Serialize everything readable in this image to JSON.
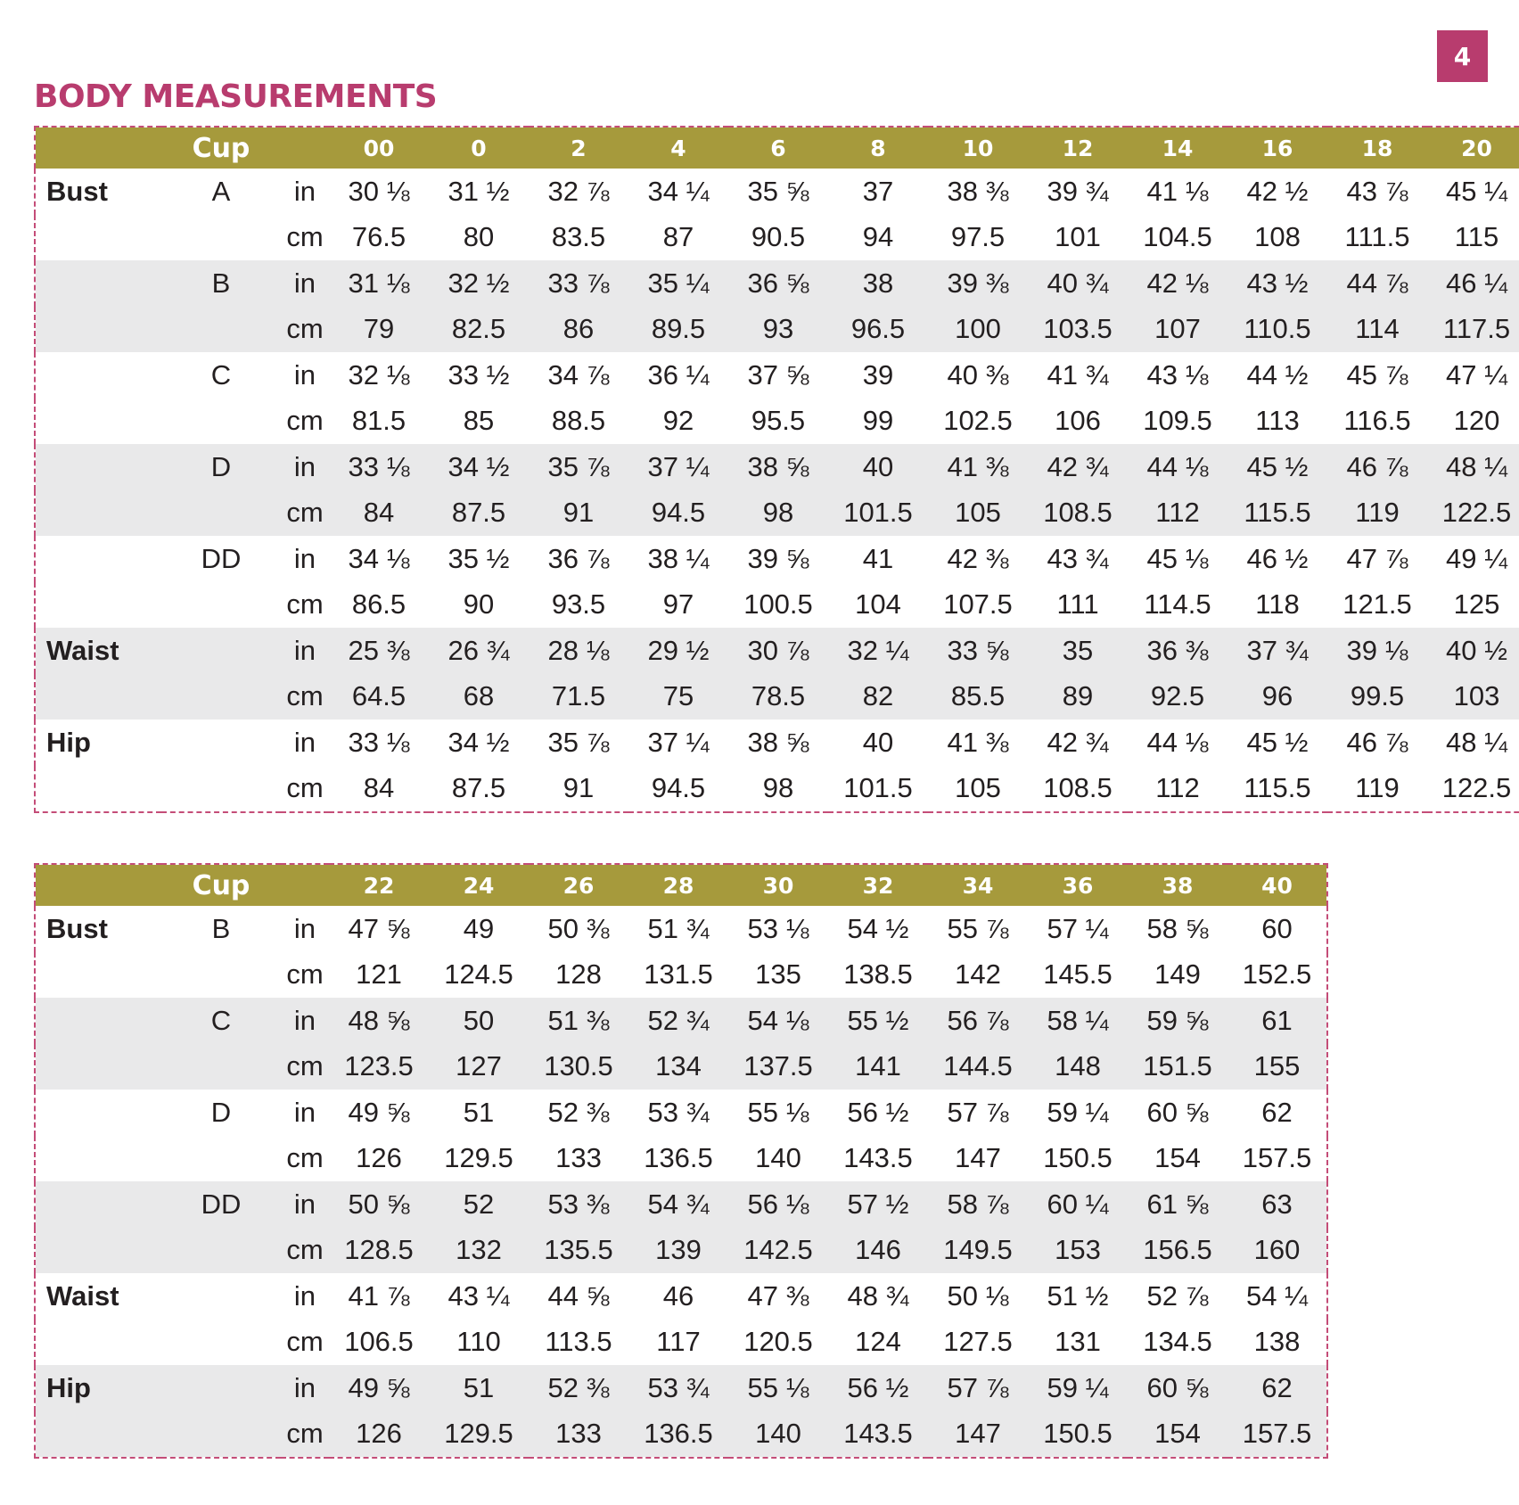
{
  "page_number": "4",
  "title": "BODY MEASUREMENTS",
  "colors": {
    "accent": "#b83c6e",
    "header_band": "#a69a3c",
    "row_shade": "#e9e9ea",
    "border_dash": "#c44d78"
  },
  "table1": {
    "cup_header": "Cup",
    "sizes": [
      "00",
      "0",
      "2",
      "4",
      "6",
      "8",
      "10",
      "12",
      "14",
      "16",
      "18",
      "20"
    ],
    "rows": [
      {
        "measure": "Bust",
        "cup": "A",
        "unit": "in",
        "values": [
          "30 ⅛",
          "31 ½",
          "32 ⅞",
          "34 ¼",
          "35 ⅝",
          "37",
          "38 ⅜",
          "39 ¾",
          "41 ⅛",
          "42 ½",
          "43 ⅞",
          "45 ¼"
        ]
      },
      {
        "measure": "",
        "cup": "",
        "unit": "cm",
        "values": [
          "76.5",
          "80",
          "83.5",
          "87",
          "90.5",
          "94",
          "97.5",
          "101",
          "104.5",
          "108",
          "111.5",
          "115"
        ]
      },
      {
        "measure": "",
        "cup": "B",
        "unit": "in",
        "values": [
          "31 ⅛",
          "32 ½",
          "33 ⅞",
          "35 ¼",
          "36 ⅝",
          "38",
          "39 ⅜",
          "40 ¾",
          "42 ⅛",
          "43 ½",
          "44 ⅞",
          "46 ¼"
        ]
      },
      {
        "measure": "",
        "cup": "",
        "unit": "cm",
        "values": [
          "79",
          "82.5",
          "86",
          "89.5",
          "93",
          "96.5",
          "100",
          "103.5",
          "107",
          "110.5",
          "114",
          "117.5"
        ]
      },
      {
        "measure": "",
        "cup": "C",
        "unit": "in",
        "values": [
          "32 ⅛",
          "33 ½",
          "34 ⅞",
          "36 ¼",
          "37 ⅝",
          "39",
          "40 ⅜",
          "41 ¾",
          "43 ⅛",
          "44 ½",
          "45 ⅞",
          "47 ¼"
        ]
      },
      {
        "measure": "",
        "cup": "",
        "unit": "cm",
        "values": [
          "81.5",
          "85",
          "88.5",
          "92",
          "95.5",
          "99",
          "102.5",
          "106",
          "109.5",
          "113",
          "116.5",
          "120"
        ]
      },
      {
        "measure": "",
        "cup": "D",
        "unit": "in",
        "values": [
          "33 ⅛",
          "34 ½",
          "35 ⅞",
          "37 ¼",
          "38 ⅝",
          "40",
          "41 ⅜",
          "42 ¾",
          "44 ⅛",
          "45 ½",
          "46 ⅞",
          "48 ¼"
        ]
      },
      {
        "measure": "",
        "cup": "",
        "unit": "cm",
        "values": [
          "84",
          "87.5",
          "91",
          "94.5",
          "98",
          "101.5",
          "105",
          "108.5",
          "112",
          "115.5",
          "119",
          "122.5"
        ]
      },
      {
        "measure": "",
        "cup": "DD",
        "unit": "in",
        "values": [
          "34 ⅛",
          "35 ½",
          "36 ⅞",
          "38 ¼",
          "39 ⅝",
          "41",
          "42 ⅜",
          "43 ¾",
          "45 ⅛",
          "46 ½",
          "47 ⅞",
          "49 ¼"
        ]
      },
      {
        "measure": "",
        "cup": "",
        "unit": "cm",
        "values": [
          "86.5",
          "90",
          "93.5",
          "97",
          "100.5",
          "104",
          "107.5",
          "111",
          "114.5",
          "118",
          "121.5",
          "125"
        ]
      },
      {
        "measure": "Waist",
        "cup": "",
        "unit": "in",
        "values": [
          "25 ⅜",
          "26 ¾",
          "28 ⅛",
          "29 ½",
          "30 ⅞",
          "32 ¼",
          "33 ⅝",
          "35",
          "36 ⅜",
          "37 ¾",
          "39 ⅛",
          "40 ½"
        ]
      },
      {
        "measure": "",
        "cup": "",
        "unit": "cm",
        "values": [
          "64.5",
          "68",
          "71.5",
          "75",
          "78.5",
          "82",
          "85.5",
          "89",
          "92.5",
          "96",
          "99.5",
          "103"
        ]
      },
      {
        "measure": "Hip",
        "cup": "",
        "unit": "in",
        "values": [
          "33 ⅛",
          "34 ½",
          "35 ⅞",
          "37 ¼",
          "38 ⅝",
          "40",
          "41 ⅜",
          "42 ¾",
          "44 ⅛",
          "45 ½",
          "46 ⅞",
          "48 ¼"
        ]
      },
      {
        "measure": "",
        "cup": "",
        "unit": "cm",
        "values": [
          "84",
          "87.5",
          "91",
          "94.5",
          "98",
          "101.5",
          "105",
          "108.5",
          "112",
          "115.5",
          "119",
          "122.5"
        ]
      }
    ]
  },
  "table2": {
    "cup_header": "Cup",
    "sizes": [
      "22",
      "24",
      "26",
      "28",
      "30",
      "32",
      "34",
      "36",
      "38",
      "40"
    ],
    "rows": [
      {
        "measure": "Bust",
        "cup": "B",
        "unit": "in",
        "values": [
          "47 ⅝",
          "49",
          "50 ⅜",
          "51 ¾",
          "53 ⅛",
          "54 ½",
          "55 ⅞",
          "57 ¼",
          "58 ⅝",
          "60"
        ]
      },
      {
        "measure": "",
        "cup": "",
        "unit": "cm",
        "values": [
          "121",
          "124.5",
          "128",
          "131.5",
          "135",
          "138.5",
          "142",
          "145.5",
          "149",
          "152.5"
        ]
      },
      {
        "measure": "",
        "cup": "C",
        "unit": "in",
        "values": [
          "48 ⅝",
          "50",
          "51 ⅜",
          "52 ¾",
          "54 ⅛",
          "55 ½",
          "56 ⅞",
          "58 ¼",
          "59 ⅝",
          "61"
        ]
      },
      {
        "measure": "",
        "cup": "",
        "unit": "cm",
        "values": [
          "123.5",
          "127",
          "130.5",
          "134",
          "137.5",
          "141",
          "144.5",
          "148",
          "151.5",
          "155"
        ]
      },
      {
        "measure": "",
        "cup": "D",
        "unit": "in",
        "values": [
          "49 ⅝",
          "51",
          "52 ⅜",
          "53 ¾",
          "55 ⅛",
          "56 ½",
          "57 ⅞",
          "59 ¼",
          "60 ⅝",
          "62"
        ]
      },
      {
        "measure": "",
        "cup": "",
        "unit": "cm",
        "values": [
          "126",
          "129.5",
          "133",
          "136.5",
          "140",
          "143.5",
          "147",
          "150.5",
          "154",
          "157.5"
        ]
      },
      {
        "measure": "",
        "cup": "DD",
        "unit": "in",
        "values": [
          "50 ⅝",
          "52",
          "53 ⅜",
          "54 ¾",
          "56 ⅛",
          "57 ½",
          "58 ⅞",
          "60 ¼",
          "61 ⅝",
          "63"
        ]
      },
      {
        "measure": "",
        "cup": "",
        "unit": "cm",
        "values": [
          "128.5",
          "132",
          "135.5",
          "139",
          "142.5",
          "146",
          "149.5",
          "153",
          "156.5",
          "160"
        ]
      },
      {
        "measure": "Waist",
        "cup": "",
        "unit": "in",
        "values": [
          "41 ⅞",
          "43 ¼",
          "44 ⅝",
          "46",
          "47 ⅜",
          "48 ¾",
          "50 ⅛",
          "51 ½",
          "52 ⅞",
          "54 ¼"
        ]
      },
      {
        "measure": "",
        "cup": "",
        "unit": "cm",
        "values": [
          "106.5",
          "110",
          "113.5",
          "117",
          "120.5",
          "124",
          "127.5",
          "131",
          "134.5",
          "138"
        ]
      },
      {
        "measure": "Hip",
        "cup": "",
        "unit": "in",
        "values": [
          "49 ⅝",
          "51",
          "52 ⅜",
          "53 ¾",
          "55 ⅛",
          "56 ½",
          "57 ⅞",
          "59 ¼",
          "60 ⅝",
          "62"
        ]
      },
      {
        "measure": "",
        "cup": "",
        "unit": "cm",
        "values": [
          "126",
          "129.5",
          "133",
          "136.5",
          "140",
          "143.5",
          "147",
          "150.5",
          "154",
          "157.5"
        ]
      }
    ]
  }
}
